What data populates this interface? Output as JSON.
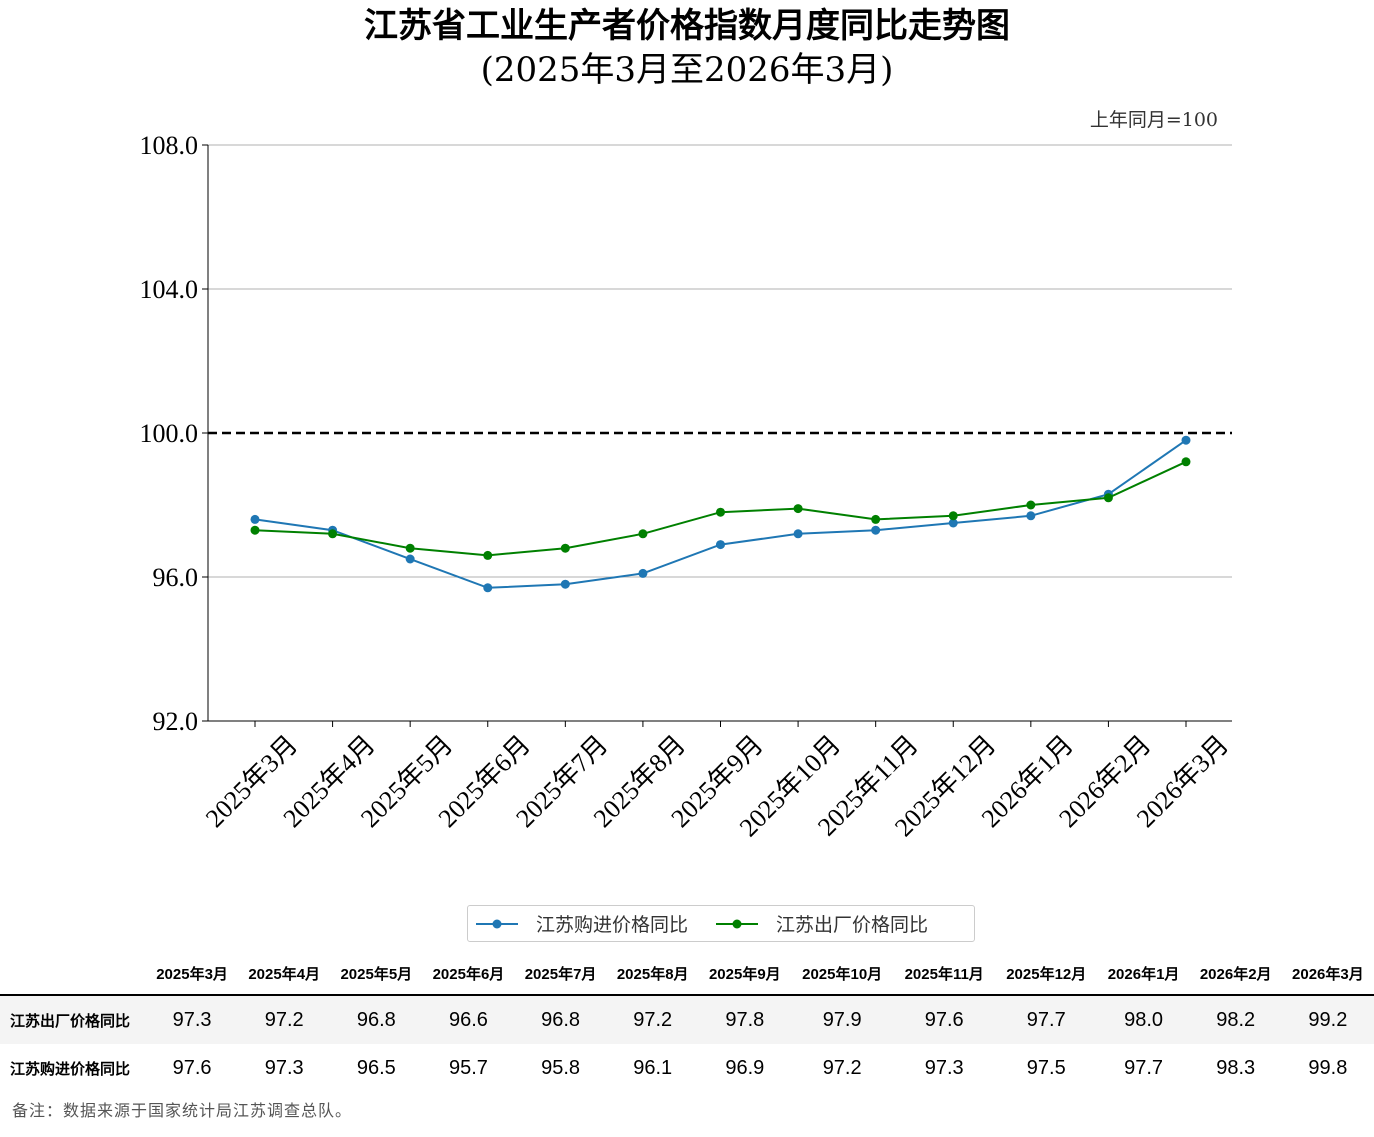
{
  "chart_data": {
    "type": "line",
    "title": "江苏省工业生产者价格指数月度同比走势图",
    "subtitle": "(2025年3月至2026年3月)",
    "unit_note": "上年同月=100",
    "categories": [
      "2025年3月",
      "2025年4月",
      "2025年5月",
      "2025年6月",
      "2025年7月",
      "2025年8月",
      "2025年9月",
      "2025年10月",
      "2025年11月",
      "2025年12月",
      "2026年1月",
      "2026年2月",
      "2026年3月"
    ],
    "ylim": [
      92,
      108
    ],
    "yticks": [
      "92.0",
      "96.0",
      "100.0",
      "104.0",
      "108.0"
    ],
    "ytick_values": [
      92,
      96,
      100,
      104,
      108
    ],
    "reference_line": 100,
    "grid": true,
    "legend_position": "bottom",
    "series": [
      {
        "name": "江苏购进价格同比",
        "color": "#1f77b4",
        "values": [
          97.6,
          97.3,
          96.5,
          95.7,
          95.8,
          96.1,
          96.9,
          97.2,
          97.3,
          97.5,
          97.7,
          98.3,
          99.8
        ]
      },
      {
        "name": "江苏出厂价格同比",
        "color": "#008000",
        "values": [
          97.3,
          97.2,
          96.8,
          96.6,
          96.8,
          97.2,
          97.8,
          97.9,
          97.6,
          97.7,
          98.0,
          98.2,
          99.2
        ]
      }
    ]
  },
  "table": {
    "rows": [
      {
        "label": "江苏出厂价格同比",
        "values": [
          "97.3",
          "97.2",
          "96.8",
          "96.6",
          "96.8",
          "97.2",
          "97.8",
          "97.9",
          "97.6",
          "97.7",
          "98.0",
          "98.2",
          "99.2"
        ]
      },
      {
        "label": "江苏购进价格同比",
        "values": [
          "97.6",
          "97.3",
          "96.5",
          "95.7",
          "95.8",
          "96.1",
          "96.9",
          "97.2",
          "97.3",
          "97.5",
          "97.7",
          "98.3",
          "99.8"
        ]
      }
    ]
  },
  "note": "备注：数据来源于国家统计局江苏调查总队。"
}
